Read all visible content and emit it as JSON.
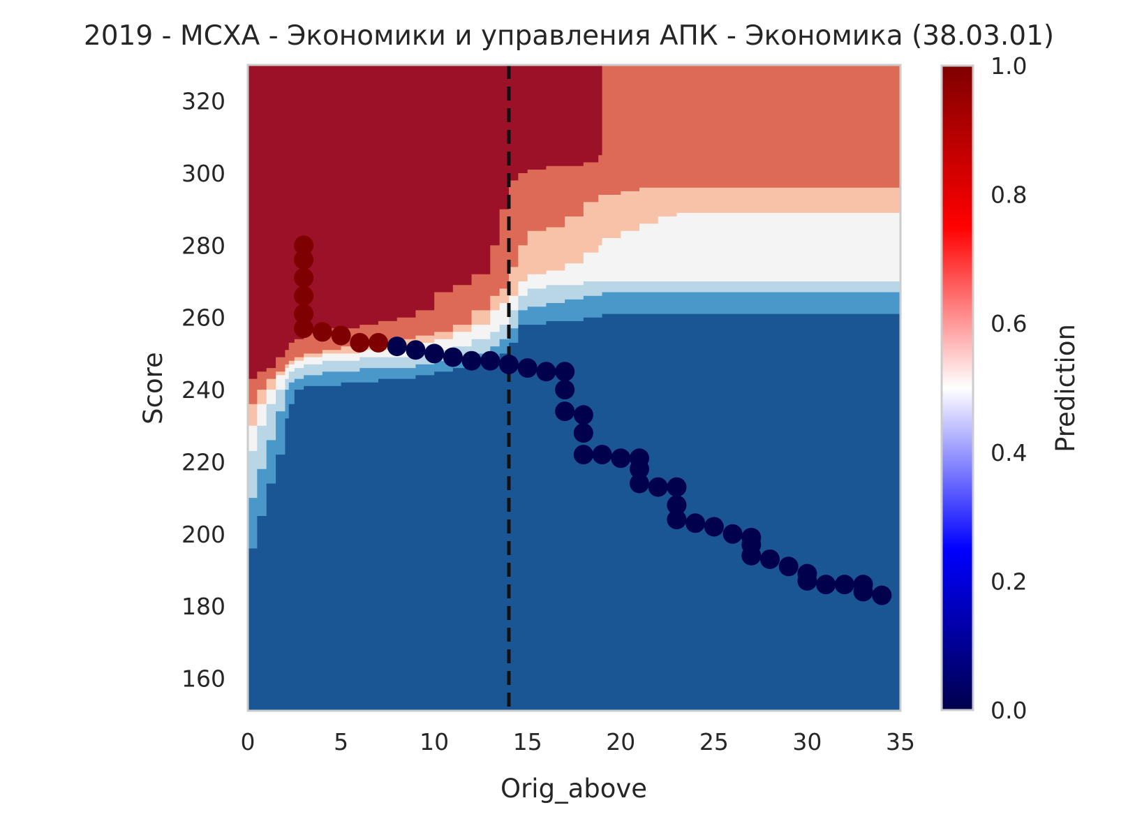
{
  "chart_data": {
    "type": "heatmap",
    "title": "2019 - МСХА - Экономики и управления АПК - Экономика (38.03.01)",
    "xlabel": "Orig_above",
    "ylabel": "Score",
    "xlim": [
      0,
      35
    ],
    "ylim": [
      151,
      330
    ],
    "x_ticks": [
      0,
      5,
      10,
      15,
      20,
      25,
      30,
      35
    ],
    "y_ticks": [
      160,
      180,
      200,
      220,
      240,
      260,
      280,
      300,
      320
    ],
    "grid": false,
    "reference_line": {
      "x": 14,
      "style": "dashed",
      "color": "#111111"
    },
    "colorbar": {
      "label": "Prediction",
      "range": [
        0,
        1
      ],
      "ticks": [
        0.0,
        0.2,
        0.4,
        0.6,
        0.8,
        1.0
      ],
      "tick_labels": [
        "0.0",
        "0.2",
        "0.4",
        "0.6",
        "0.8",
        "1.0"
      ],
      "colormap": "seismic"
    },
    "region_colors": {
      "0.95": "#9b1127",
      "0.8": "#dc6a56",
      "0.65": "#f7c2a7",
      "0.5": "#f4f4f4",
      "0.35": "#b9d6e7",
      "0.2": "#4a98c9",
      "0.05": "#1b5694"
    },
    "boundaries": {
      "comment": "Prediction level boundaries: score values (y) at given orig_above (x); above boundary = higher class",
      "x": [
        0,
        0.5,
        1,
        1.5,
        2,
        2.2,
        2.5,
        3,
        4,
        5,
        6,
        7,
        8,
        9,
        10,
        11,
        12,
        13,
        13.5,
        14,
        14.5,
        15,
        16,
        17,
        18,
        18.8,
        19,
        20,
        21,
        22,
        23,
        24,
        25,
        26,
        27,
        28,
        29,
        30,
        31,
        32,
        33,
        34,
        35
      ],
      "b_0.9": [
        243,
        245,
        246,
        249,
        251,
        253,
        254,
        256,
        257,
        257,
        258,
        259,
        260,
        262,
        267,
        269,
        272,
        280,
        290,
        298,
        300,
        301,
        302,
        302,
        303,
        305,
        330,
        330,
        330,
        330,
        330,
        330,
        330,
        330,
        330,
        330,
        330,
        330,
        330,
        330,
        330,
        330,
        330
      ],
      "b_0.7": [
        236,
        240,
        243,
        245,
        247,
        248,
        249,
        250,
        251,
        252,
        253,
        253,
        254,
        255,
        256,
        258,
        262,
        266,
        268,
        274,
        280,
        284,
        285,
        288,
        292,
        294,
        294,
        295,
        296,
        296,
        296,
        296,
        296,
        296,
        296,
        296,
        296,
        296,
        296,
        296,
        296,
        296,
        296
      ],
      "b_0.55": [
        230,
        236,
        240,
        244,
        246,
        247,
        248,
        249,
        250,
        250,
        251,
        251,
        252,
        253,
        254,
        256,
        258,
        262,
        264,
        266,
        270,
        272,
        273,
        275,
        278,
        280,
        282,
        284,
        286,
        288,
        289,
        289,
        289,
        289,
        289,
        289,
        289,
        289,
        289,
        289,
        289,
        289,
        289
      ],
      "b_0.45": [
        223,
        230,
        236,
        240,
        243,
        245,
        246,
        247,
        248,
        248,
        249,
        249,
        249,
        250,
        251,
        252,
        254,
        256,
        258,
        262,
        266,
        268,
        269,
        269,
        270,
        270,
        270,
        270,
        270,
        270,
        270,
        270,
        270,
        270,
        270,
        270,
        270,
        270,
        270,
        270,
        270,
        270,
        270
      ],
      "b_0.3": [
        210,
        218,
        226,
        234,
        240,
        242,
        243,
        244,
        245,
        245,
        246,
        246,
        246,
        247,
        248,
        249,
        250,
        252,
        254,
        257,
        262,
        263,
        264,
        265,
        266,
        266,
        267,
        267,
        267,
        267,
        267,
        267,
        267,
        267,
        267,
        267,
        267,
        267,
        267,
        267,
        267,
        267,
        267
      ],
      "b_0.1": [
        196,
        205,
        214,
        222,
        232,
        236,
        240,
        241,
        241,
        242,
        242,
        243,
        243,
        244,
        245,
        246,
        247,
        248,
        250,
        253,
        258,
        258,
        259,
        259,
        260,
        260,
        261,
        261,
        261,
        261,
        261,
        261,
        261,
        261,
        261,
        261,
        261,
        261,
        261,
        261,
        261,
        261,
        261
      ]
    },
    "series": [
      {
        "name": "",
        "type": "points",
        "x": [
          3,
          3,
          3,
          3,
          3,
          3,
          4,
          5,
          6,
          7,
          8,
          9,
          10,
          11,
          12,
          13,
          14,
          15,
          16,
          17,
          17,
          17,
          18,
          18,
          18,
          19,
          20,
          21,
          21,
          21,
          22,
          23,
          23,
          23,
          24,
          25,
          26,
          27,
          27,
          27,
          28,
          29,
          30,
          30,
          31,
          32,
          33,
          33,
          34
        ],
        "y": [
          280,
          276,
          271,
          266,
          261,
          257,
          256,
          255,
          253,
          253,
          252,
          251,
          250,
          249,
          248,
          248,
          247,
          246,
          245,
          245,
          240,
          234,
          233,
          228,
          222,
          222,
          221,
          221,
          218,
          214,
          213,
          213,
          208,
          204,
          203,
          202,
          200,
          199,
          197,
          194,
          193,
          191,
          189,
          187,
          186,
          186,
          186,
          184,
          183
        ],
        "p": [
          0.99,
          0.99,
          0.99,
          0.99,
          0.99,
          0.99,
          0.99,
          0.99,
          0.99,
          0.99,
          0.0,
          0.0,
          0.0,
          0.0,
          0.0,
          0.0,
          0.0,
          0.0,
          0.0,
          0.0,
          0.0,
          0.0,
          0.0,
          0.0,
          0.0,
          0.0,
          0.0,
          0.0,
          0.0,
          0.0,
          0.0,
          0.0,
          0.0,
          0.0,
          0.0,
          0.0,
          0.0,
          0.0,
          0.0,
          0.0,
          0.0,
          0.0,
          0.0,
          0.0,
          0.0,
          0.0,
          0.0,
          0.0,
          0.0
        ]
      }
    ]
  }
}
